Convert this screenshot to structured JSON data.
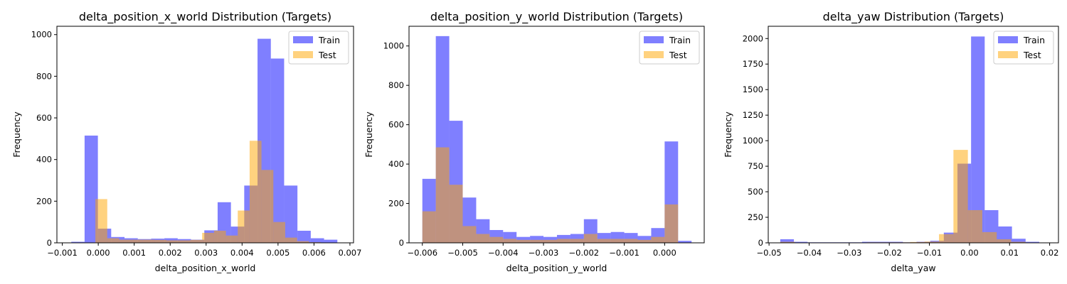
{
  "chart_data": [
    {
      "type": "histogram",
      "title": "delta_position_x_world Distribution (Targets)",
      "xlabel": "delta_position_x_world",
      "ylabel": "Frequency",
      "xlim": [
        -0.00115,
        0.0071
      ],
      "ylim": [
        0,
        1040
      ],
      "xticks": [
        -0.001,
        0.0,
        0.001,
        0.002,
        0.003,
        0.004,
        0.005,
        0.006,
        0.007
      ],
      "xtick_labels": [
        "−0.001",
        "0.000",
        "0.001",
        "0.002",
        "0.003",
        "0.004",
        "0.005",
        "0.006",
        "0.007"
      ],
      "yticks": [
        0,
        200,
        400,
        600,
        800,
        1000
      ],
      "ytick_labels": [
        "0",
        "200",
        "400",
        "600",
        "800",
        "1000"
      ],
      "legend": "top-right",
      "series": [
        {
          "name": "Train",
          "color": "#0000ff",
          "opacity": 0.5,
          "bins": [
            -0.00075,
            -0.00038,
            -1e-05,
            0.00036,
            0.00073,
            0.0011,
            0.00147,
            0.00184,
            0.00221,
            0.00258,
            0.00295,
            0.00332,
            0.00369,
            0.00406,
            0.00443,
            0.0048,
            0.00517,
            0.00554,
            0.00591,
            0.00628,
            0.00665
          ],
          "counts": [
            5,
            515,
            68,
            28,
            22,
            18,
            20,
            22,
            18,
            15,
            60,
            195,
            78,
            275,
            980,
            885,
            275,
            58,
            22,
            15
          ]
        },
        {
          "name": "Test",
          "color": "#ffa500",
          "opacity": 0.5,
          "bins": [
            -8e-05,
            0.00025,
            0.00058,
            0.00091,
            0.00124,
            0.00157,
            0.0019,
            0.00223,
            0.00256,
            0.00289,
            0.00322,
            0.00355,
            0.00388,
            0.00421,
            0.00454,
            0.00487,
            0.0052,
            0.00553,
            0.00586,
            0.00619
          ],
          "counts": [
            210,
            22,
            15,
            15,
            15,
            14,
            12,
            12,
            14,
            48,
            58,
            35,
            155,
            490,
            350,
            100,
            25,
            8,
            3
          ]
        }
      ]
    },
    {
      "type": "histogram",
      "title": "delta_position_y_world Distribution (Targets)",
      "xlabel": "delta_position_y_world",
      "ylabel": "Frequency",
      "xlim": [
        -0.00633,
        0.00098
      ],
      "ylim": [
        0,
        1100
      ],
      "xticks": [
        -0.006,
        -0.005,
        -0.004,
        -0.003,
        -0.002,
        -0.001,
        0.0
      ],
      "xtick_labels": [
        "−0.006",
        "−0.005",
        "−0.004",
        "−0.003",
        "−0.002",
        "−0.001",
        "0.000"
      ],
      "yticks": [
        0,
        200,
        400,
        600,
        800,
        1000
      ],
      "ytick_labels": [
        "0",
        "200",
        "400",
        "600",
        "800",
        "1000"
      ],
      "legend": "top-right",
      "series": [
        {
          "name": "Train",
          "color": "#0000ff",
          "opacity": 0.5,
          "bins": [
            -0.006,
            -0.0056667,
            -0.0053333,
            -0.005,
            -0.0046667,
            -0.0043333,
            -0.004,
            -0.0036667,
            -0.0033333,
            -0.003,
            -0.0026667,
            -0.0023333,
            -0.002,
            -0.0016667,
            -0.0013333,
            -0.001,
            -0.0006667,
            -0.0003333,
            0.0,
            0.0003333,
            0.0006667
          ],
          "counts": [
            325,
            1050,
            620,
            230,
            120,
            65,
            55,
            30,
            35,
            30,
            40,
            45,
            120,
            50,
            55,
            50,
            35,
            75,
            515,
            10
          ]
        },
        {
          "name": "Test",
          "color": "#ffa500",
          "opacity": 0.5,
          "bins": [
            -0.006,
            -0.0056667,
            -0.0053333,
            -0.005,
            -0.0046667,
            -0.0043333,
            -0.004,
            -0.0036667,
            -0.0033333,
            -0.003,
            -0.0026667,
            -0.0023333,
            -0.002,
            -0.0016667,
            -0.0013333,
            -0.001,
            -0.0006667,
            -0.0003333,
            0.0,
            0.0003333
          ],
          "counts": [
            160,
            485,
            295,
            85,
            45,
            30,
            20,
            15,
            15,
            15,
            20,
            20,
            45,
            20,
            20,
            20,
            15,
            30,
            195
          ]
        }
      ]
    },
    {
      "type": "histogram",
      "title": "delta_yaw Distribution (Targets)",
      "xlabel": "delta_yaw",
      "ylabel": "Frequency",
      "xlim": [
        -0.0502,
        0.0222
      ],
      "ylim": [
        0,
        2120
      ],
      "xticks": [
        -0.05,
        -0.04,
        -0.03,
        -0.02,
        -0.01,
        0.0,
        0.01,
        0.02
      ],
      "xtick_labels": [
        "−0.05",
        "−0.04",
        "−0.03",
        "−0.02",
        "−0.01",
        "0.00",
        "0.01",
        "0.02"
      ],
      "yticks": [
        0,
        250,
        500,
        750,
        1000,
        1250,
        1500,
        1750,
        2000
      ],
      "ytick_labels": [
        "0",
        "250",
        "500",
        "750",
        "1000",
        "1250",
        "1500",
        "1750",
        "2000"
      ],
      "legend": "top-right",
      "series": [
        {
          "name": "Train",
          "color": "#0000ff",
          "opacity": 0.5,
          "bins": [
            -0.0472,
            -0.0438,
            -0.0404,
            -0.037,
            -0.0336,
            -0.0302,
            -0.0268,
            -0.0234,
            -0.02,
            -0.0166,
            -0.0132,
            -0.0098,
            -0.0064,
            -0.003,
            0.0004,
            0.0038,
            0.0072,
            0.0106,
            0.014,
            0.0174
          ],
          "counts": [
            35,
            10,
            5,
            5,
            5,
            5,
            10,
            10,
            10,
            5,
            10,
            20,
            100,
            775,
            2020,
            320,
            160,
            40,
            10
          ]
        },
        {
          "name": "Test",
          "color": "#ffa500",
          "opacity": 0.5,
          "bins": [
            -0.0472,
            -0.0436,
            -0.04,
            -0.0364,
            -0.0328,
            -0.0292,
            -0.0256,
            -0.022,
            -0.0184,
            -0.0148,
            -0.0112,
            -0.0076,
            -0.004,
            -0.0004,
            0.0032,
            0.0068,
            0.0104,
            0.014
          ],
          "counts": [
            10,
            3,
            3,
            3,
            3,
            3,
            5,
            5,
            5,
            8,
            12,
            85,
            910,
            320,
            105,
            35,
            10
          ]
        }
      ]
    }
  ]
}
